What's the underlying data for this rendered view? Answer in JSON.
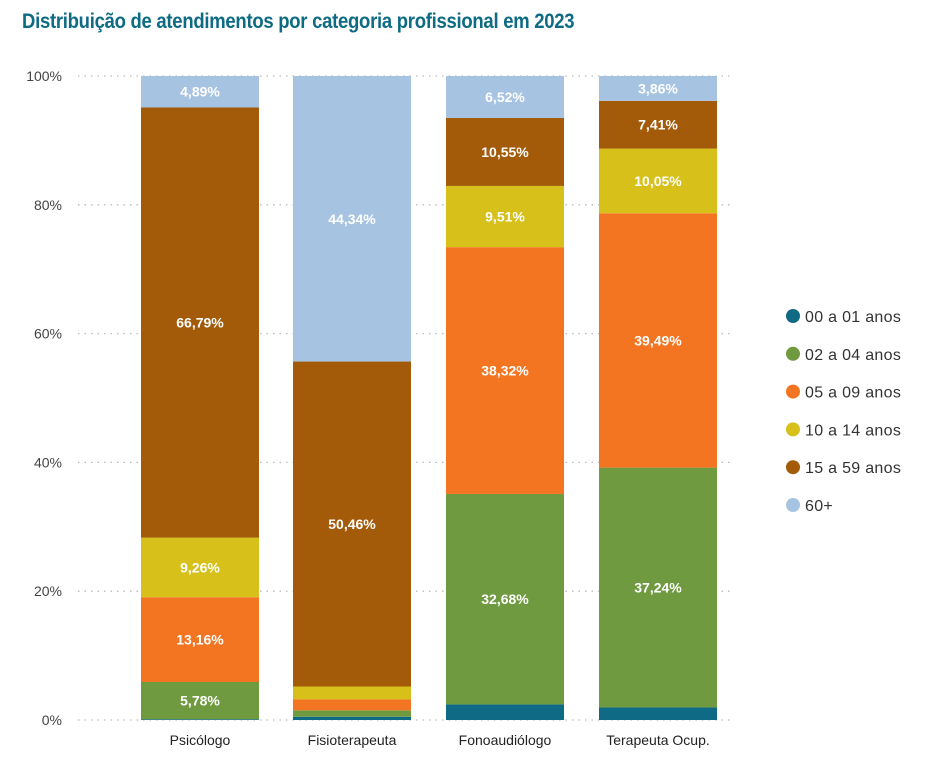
{
  "chart_data": {
    "type": "bar",
    "stacked": true,
    "title": "Distribuição de atendimentos por categoria profissional em 2023",
    "categories": [
      "Psicólogo",
      "Fisioterapeuta",
      "Fonoaudiólogo",
      "Terapeuta Ocup."
    ],
    "ylim": [
      0,
      100
    ],
    "yticks": [
      "0%",
      "20%",
      "40%",
      "60%",
      "80%",
      "100%"
    ],
    "grid": "horizontal dotted",
    "legend": "right",
    "series": [
      {
        "name": "00 a 01 anos",
        "color": "#0f6a85",
        "values": [
          0.12,
          0.5,
          2.42,
          1.95
        ],
        "labels": [
          "",
          "",
          "",
          ""
        ]
      },
      {
        "name": "02 a 04 anos",
        "color": "#6f9a40",
        "values": [
          5.78,
          1.0,
          32.68,
          37.24
        ],
        "labels": [
          "5,78%",
          "",
          "32,68%",
          "37,24%"
        ]
      },
      {
        "name": "05 a 09 anos",
        "color": "#f37421",
        "values": [
          13.16,
          1.7,
          38.32,
          39.49
        ],
        "labels": [
          "13,16%",
          "",
          "38,32%",
          "39,49%"
        ]
      },
      {
        "name": "10 a 14 anos",
        "color": "#d6c019",
        "values": [
          9.26,
          2.0,
          9.51,
          10.05
        ],
        "labels": [
          "9,26%",
          "",
          "9,51%",
          "10,05%"
        ]
      },
      {
        "name": "15 a 59 anos",
        "color": "#a35a09",
        "values": [
          66.79,
          50.46,
          10.55,
          7.41
        ],
        "labels": [
          "66,79%",
          "50,46%",
          "10,55%",
          "7,41%"
        ]
      },
      {
        "name": "60+",
        "color": "#a7c3e2",
        "values": [
          4.89,
          44.34,
          6.52,
          3.86
        ],
        "labels": [
          "4,89%",
          "44,34%",
          "6,52%",
          "3,86%"
        ]
      }
    ]
  }
}
